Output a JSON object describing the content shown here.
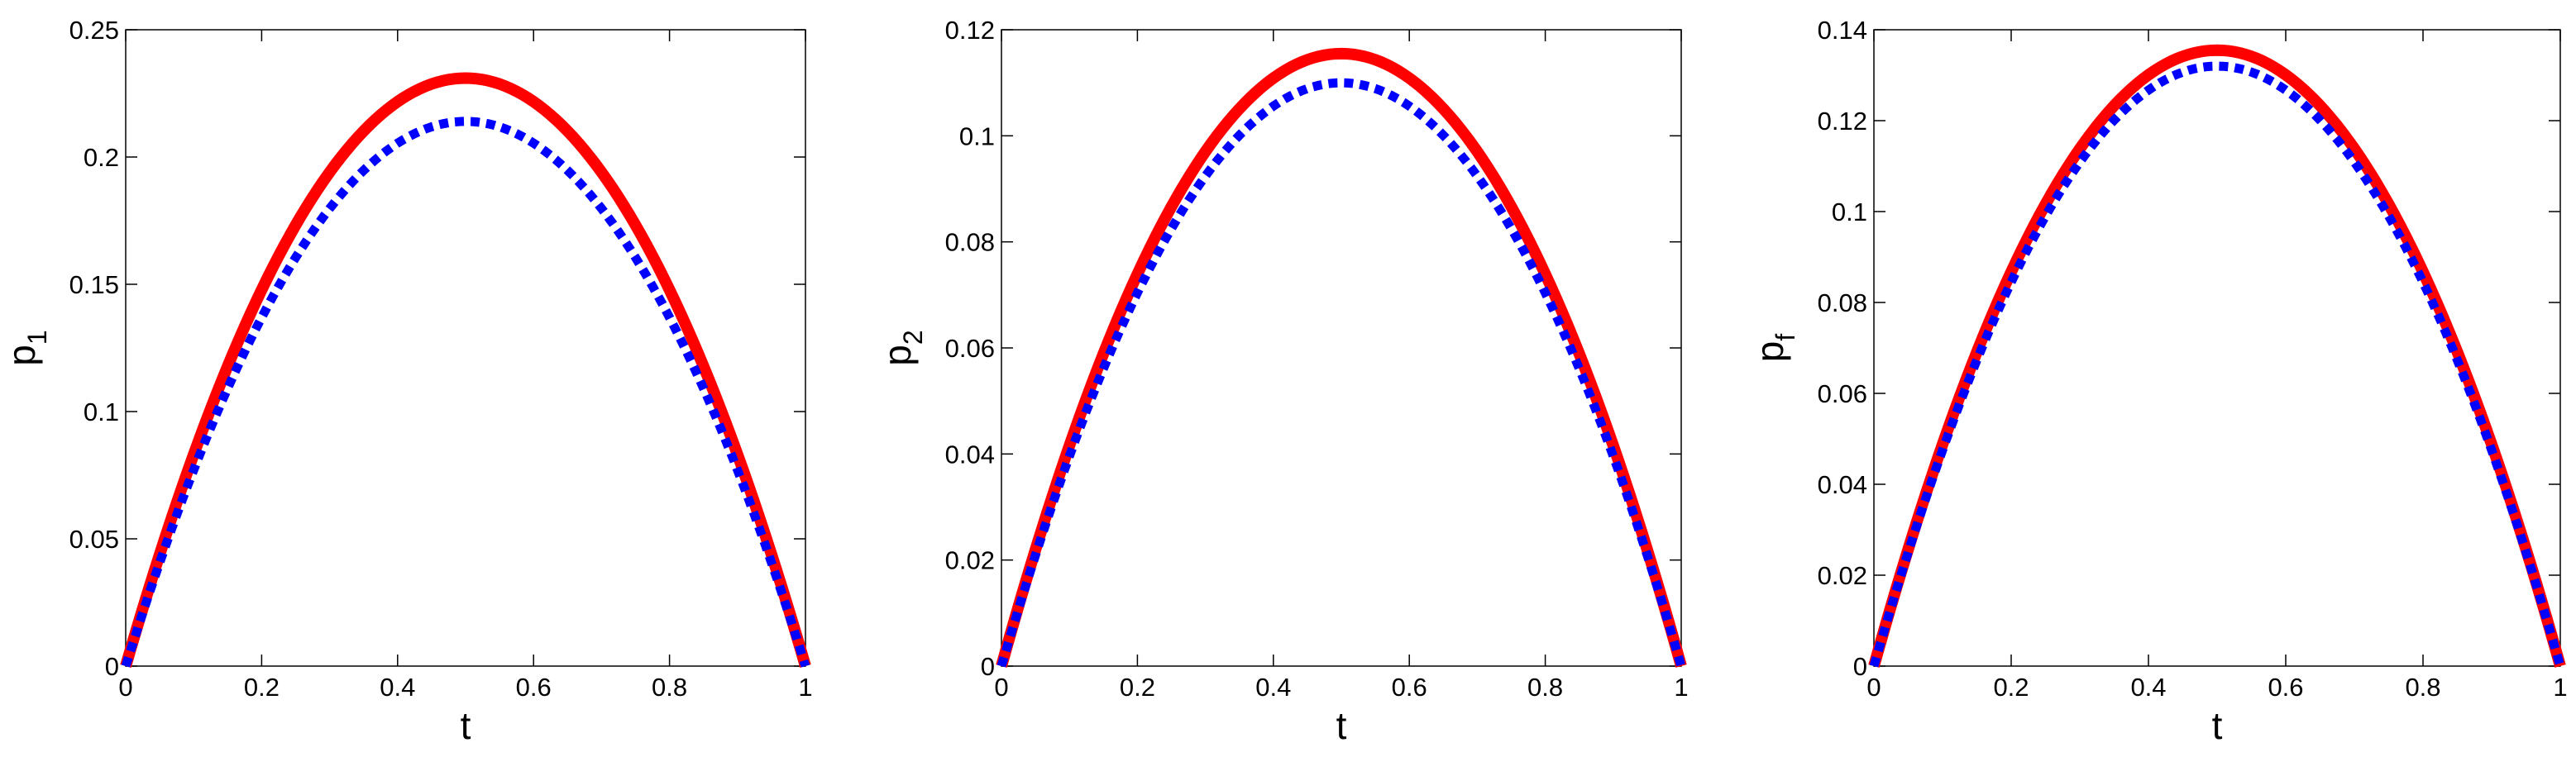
{
  "chart_data": [
    {
      "type": "line",
      "xlabel": "t",
      "ylabel_base": "p",
      "ylabel_sub": "1",
      "xlim": [
        0,
        1
      ],
      "ylim": [
        0,
        0.25
      ],
      "xticks": [
        "0",
        "0.2",
        "0.4",
        "0.6",
        "0.8",
        "1"
      ],
      "yticks": [
        "0",
        "0.05",
        "0.1",
        "0.15",
        "0.2",
        "0.25"
      ],
      "grid": false,
      "legend": "none",
      "series": [
        {
          "color": "#ff0000",
          "style": "solid",
          "peak_x": 0.5,
          "peak_y": 0.231
        },
        {
          "color": "#0000ff",
          "style": "dotted",
          "peak_x": 0.5,
          "peak_y": 0.214
        }
      ]
    },
    {
      "type": "line",
      "xlabel": "t",
      "ylabel_base": "p",
      "ylabel_sub": "2",
      "xlim": [
        0,
        1
      ],
      "ylim": [
        0,
        0.12
      ],
      "xticks": [
        "0",
        "0.2",
        "0.4",
        "0.6",
        "0.8",
        "1"
      ],
      "yticks": [
        "0",
        "0.02",
        "0.04",
        "0.06",
        "0.08",
        "0.1",
        "0.12"
      ],
      "grid": false,
      "legend": "none",
      "series": [
        {
          "color": "#ff0000",
          "style": "solid",
          "peak_x": 0.5,
          "peak_y": 0.1155
        },
        {
          "color": "#0000ff",
          "style": "dotted",
          "peak_x": 0.5,
          "peak_y": 0.11
        }
      ]
    },
    {
      "type": "line",
      "xlabel": "t",
      "ylabel_base": "p",
      "ylabel_sub": "f",
      "xlim": [
        0,
        1
      ],
      "ylim": [
        0,
        0.14
      ],
      "xticks": [
        "0",
        "0.2",
        "0.4",
        "0.6",
        "0.8",
        "1"
      ],
      "yticks": [
        "0",
        "0.02",
        "0.04",
        "0.06",
        "0.08",
        "0.1",
        "0.12",
        "0.14"
      ],
      "grid": false,
      "legend": "none",
      "series": [
        {
          "color": "#ff0000",
          "style": "solid",
          "peak_x": 0.5,
          "peak_y": 0.1355
        },
        {
          "color": "#0000ff",
          "style": "dotted",
          "peak_x": 0.5,
          "peak_y": 0.132
        }
      ]
    }
  ]
}
